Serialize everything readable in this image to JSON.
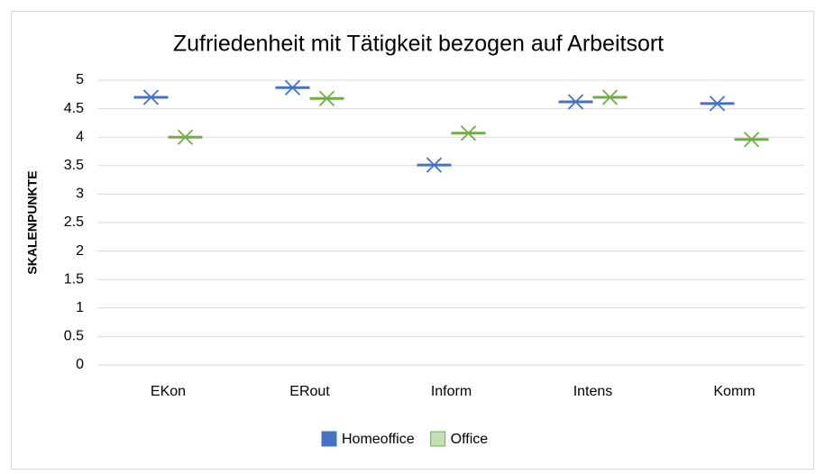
{
  "chart_data": {
    "type": "marker",
    "title": "Zufriedenheit mit Tätigkeit bezogen auf Arbeitsort",
    "y_label": "SKALENPUNKTE",
    "categories": [
      "EKon",
      "ERout",
      "Inform",
      "Intens",
      "Komm"
    ],
    "series": [
      {
        "name": "Homeoffice",
        "color": "#4472c4",
        "legend_fill": "#4472c4",
        "values": [
          4.7,
          4.87,
          3.51,
          4.62,
          4.59
        ]
      },
      {
        "name": "Office",
        "color": "#70ad47",
        "legend_fill": "#c5e0b4",
        "values": [
          4.0,
          4.68,
          4.07,
          4.7,
          3.96
        ]
      }
    ],
    "ylim": [
      0,
      5
    ],
    "yticks": [
      0,
      0.5,
      1,
      1.5,
      2,
      2.5,
      3,
      3.5,
      4,
      4.5,
      5
    ],
    "grid": true
  }
}
